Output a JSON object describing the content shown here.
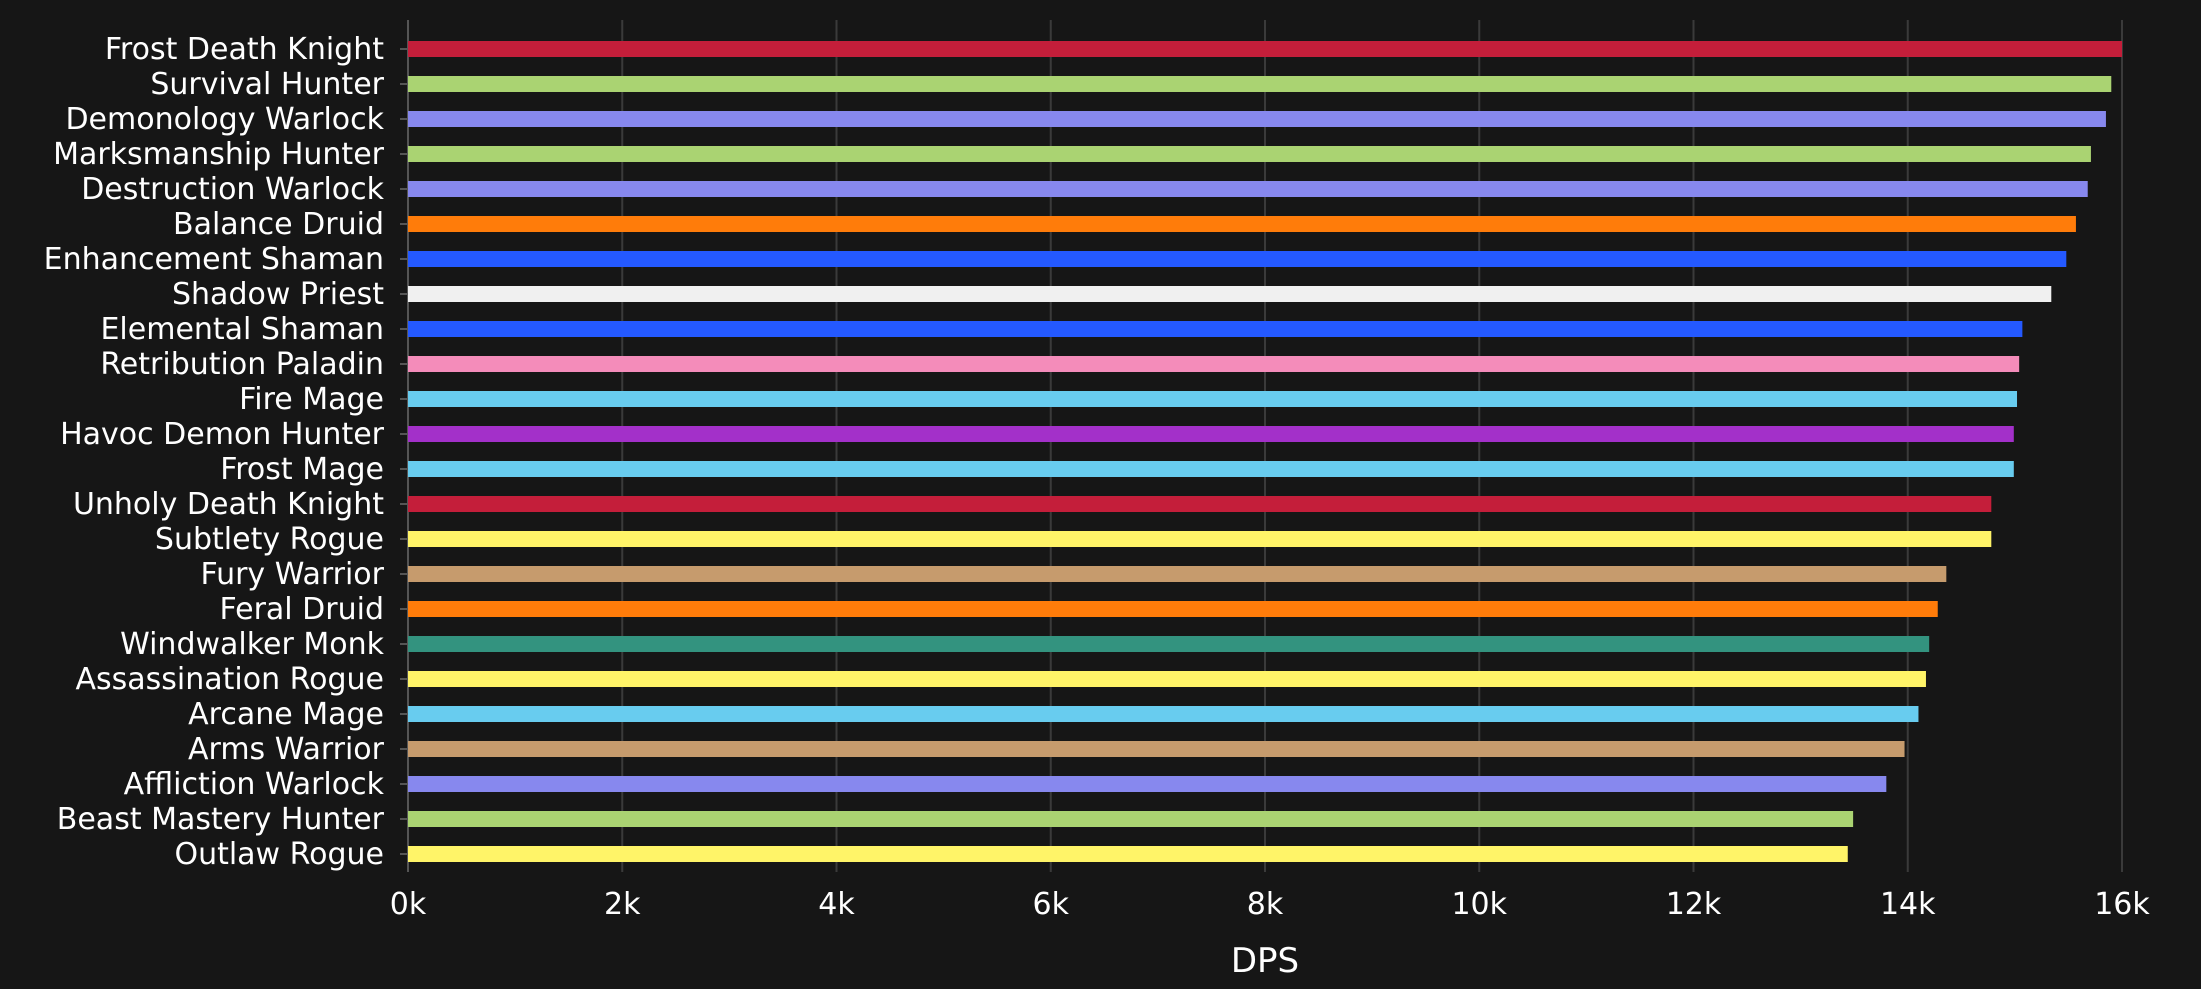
{
  "chart_data": {
    "type": "bar",
    "orientation": "horizontal",
    "xlabel": "DPS",
    "xlim": [
      0,
      16000
    ],
    "x_ticks": [
      {
        "value": 0,
        "label": "0k"
      },
      {
        "value": 2000,
        "label": "2k"
      },
      {
        "value": 4000,
        "label": "4k"
      },
      {
        "value": 6000,
        "label": "6k"
      },
      {
        "value": 8000,
        "label": "8k"
      },
      {
        "value": 10000,
        "label": "10k"
      },
      {
        "value": 12000,
        "label": "12k"
      },
      {
        "value": 14000,
        "label": "14k"
      },
      {
        "value": 16000,
        "label": "16k"
      }
    ],
    "grid": true,
    "background": "#161616",
    "bars": [
      {
        "category": "Frost Death Knight",
        "value": 16000,
        "color": "#c41e3a"
      },
      {
        "category": "Survival Hunter",
        "value": 15900,
        "color": "#aad372"
      },
      {
        "category": "Demonology Warlock",
        "value": 15850,
        "color": "#8788ee"
      },
      {
        "category": "Marksmanship Hunter",
        "value": 15710,
        "color": "#aad372"
      },
      {
        "category": "Destruction Warlock",
        "value": 15680,
        "color": "#8788ee"
      },
      {
        "category": "Balance Druid",
        "value": 15570,
        "color": "#ff7c0a"
      },
      {
        "category": "Enhancement Shaman",
        "value": 15480,
        "color": "#2459ff"
      },
      {
        "category": "Shadow Priest",
        "value": 15340,
        "color": "#f0f0f0"
      },
      {
        "category": "Elemental Shaman",
        "value": 15070,
        "color": "#2459ff"
      },
      {
        "category": "Retribution Paladin",
        "value": 15040,
        "color": "#f48cba"
      },
      {
        "category": "Fire Mage",
        "value": 15020,
        "color": "#68ccef"
      },
      {
        "category": "Havoc Demon Hunter",
        "value": 14990,
        "color": "#a330c9"
      },
      {
        "category": "Frost Mage",
        "value": 14990,
        "color": "#68ccef"
      },
      {
        "category": "Unholy Death Knight",
        "value": 14780,
        "color": "#c41e3a"
      },
      {
        "category": "Subtlety Rogue",
        "value": 14780,
        "color": "#fff468"
      },
      {
        "category": "Fury Warrior",
        "value": 14360,
        "color": "#c69b6d"
      },
      {
        "category": "Feral Druid",
        "value": 14280,
        "color": "#ff7c0a"
      },
      {
        "category": "Windwalker Monk",
        "value": 14200,
        "color": "#33937f"
      },
      {
        "category": "Assassination Rogue",
        "value": 14170,
        "color": "#fff468"
      },
      {
        "category": "Arcane Mage",
        "value": 14100,
        "color": "#68ccef"
      },
      {
        "category": "Arms Warrior",
        "value": 13970,
        "color": "#c69b6d"
      },
      {
        "category": "Affliction Warlock",
        "value": 13800,
        "color": "#8788ee"
      },
      {
        "category": "Beast Mastery Hunter",
        "value": 13490,
        "color": "#aad372"
      },
      {
        "category": "Outlaw Rogue",
        "value": 13440,
        "color": "#fff468"
      }
    ]
  }
}
